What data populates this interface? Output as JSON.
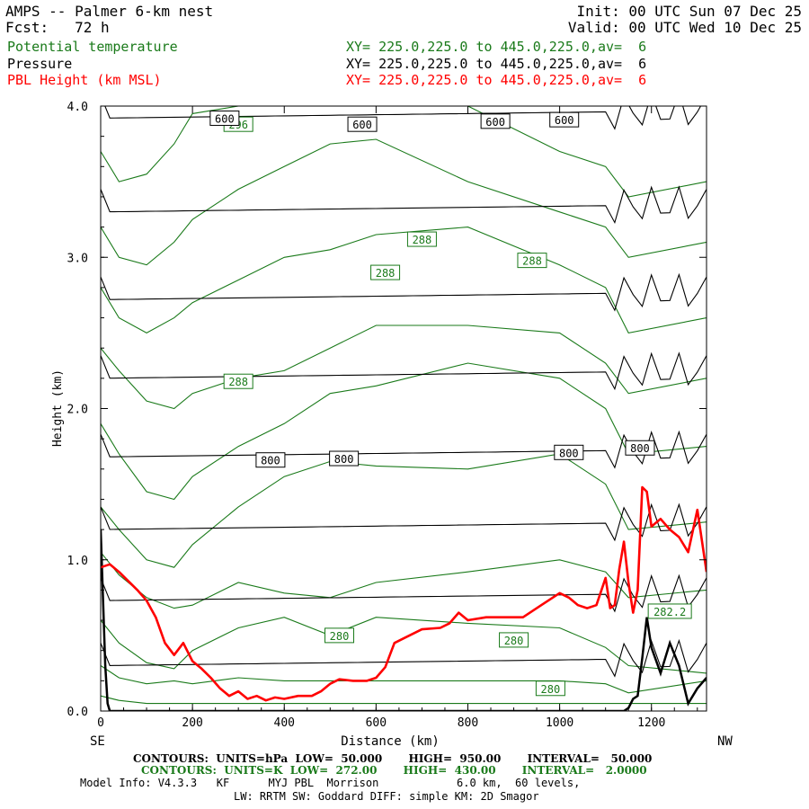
{
  "header": {
    "title": "AMPS -- Palmer 6-km nest",
    "forecast": "Fcst:   72 h",
    "init": "Init: 00 UTC Sun 07 Dec 25",
    "valid": "Valid: 00 UTC Wed 10 Dec 25",
    "fields": [
      {
        "name": "Potential temperature",
        "xy": "XY= 225.0,225.0 to 445.0,225.0,av=  6"
      },
      {
        "name": "Pressure",
        "xy": "XY= 225.0,225.0 to 445.0,225.0,av=  6"
      },
      {
        "name": "PBL Height (km MSL)",
        "xy": "XY= 225.0,225.0 to 445.0,225.0,av=  6"
      }
    ]
  },
  "footer": {
    "contours_pressure": "CONTOURS:  UNITS=hPa  LOW=  50.000       HIGH=  950.00       INTERVAL=   50.000",
    "contours_theta": "CONTOURS:  UNITS=K  LOW=  272.00       HIGH=  430.00       INTERVAL=   2.0000",
    "model_info": "Model Info: V4.3.3   KF      MYJ PBL  Morrison            6.0 km,  60 levels,",
    "physics": "LW: RRTM SW: Goddard DIFF: simple KM: 2D Smagor"
  },
  "colors": {
    "pressure": "#000000",
    "theta": "#1a7a1a",
    "pbl": "#ff0000",
    "terrain": "#000000"
  },
  "chart_data": {
    "type": "line",
    "title": "AMPS -- Palmer 6-km nest",
    "xlabel": "Distance (km)",
    "ylabel": "Height (km)",
    "xlim": [
      0,
      1320
    ],
    "ylim": [
      0,
      4.0
    ],
    "x_ticks": [
      "0",
      "200",
      "400",
      "600",
      "800",
      "1000",
      "1200"
    ],
    "y_ticks": [
      "0.0",
      "1.0",
      "2.0",
      "3.0",
      "4.0"
    ],
    "x_end_labels": {
      "left": "SE",
      "right": "NW"
    },
    "series": [
      {
        "name": "PBL Height (km MSL)",
        "x": [
          0,
          20,
          40,
          60,
          80,
          100,
          120,
          140,
          160,
          180,
          200,
          220,
          240,
          260,
          280,
          300,
          320,
          340,
          360,
          380,
          400,
          430,
          460,
          480,
          500,
          520,
          550,
          580,
          600,
          620,
          640,
          660,
          700,
          740,
          760,
          780,
          800,
          840,
          880,
          920,
          960,
          1000,
          1020,
          1040,
          1060,
          1080,
          1100,
          1110,
          1120,
          1130,
          1140,
          1150,
          1160,
          1170,
          1180,
          1190,
          1200,
          1220,
          1240,
          1260,
          1280,
          1300,
          1320
        ],
        "y": [
          0.95,
          0.97,
          0.92,
          0.86,
          0.8,
          0.73,
          0.62,
          0.45,
          0.37,
          0.45,
          0.33,
          0.28,
          0.22,
          0.15,
          0.1,
          0.13,
          0.08,
          0.1,
          0.07,
          0.09,
          0.08,
          0.1,
          0.1,
          0.13,
          0.18,
          0.21,
          0.2,
          0.2,
          0.22,
          0.29,
          0.45,
          0.48,
          0.54,
          0.55,
          0.58,
          0.65,
          0.6,
          0.62,
          0.62,
          0.62,
          0.7,
          0.78,
          0.75,
          0.7,
          0.68,
          0.7,
          0.88,
          0.68,
          0.7,
          0.94,
          1.12,
          0.85,
          0.65,
          0.8,
          1.48,
          1.45,
          1.22,
          1.27,
          1.2,
          1.15,
          1.05,
          1.33,
          0.92
        ]
      },
      {
        "name": "Terrain height",
        "x": [
          0,
          10,
          15,
          20,
          30,
          600,
          1140,
          1150,
          1160,
          1170,
          1180,
          1190,
          1200,
          1220,
          1240,
          1260,
          1280,
          1300,
          1320
        ],
        "y": [
          1.2,
          0.3,
          0.05,
          0.0,
          0.0,
          0.0,
          0.0,
          0.02,
          0.08,
          0.1,
          0.35,
          0.62,
          0.42,
          0.25,
          0.45,
          0.3,
          0.05,
          0.15,
          0.22
        ]
      }
    ],
    "pressure_contours_hPa": [
      {
        "level": 950,
        "y": 0.3
      },
      {
        "level": 900,
        "y": 0.73
      },
      {
        "level": 850,
        "y": 1.2
      },
      {
        "level": 800,
        "y": 1.68
      },
      {
        "level": 750,
        "y": 2.2
      },
      {
        "level": 700,
        "y": 2.72
      },
      {
        "level": 650,
        "y": 3.3
      },
      {
        "level": 600,
        "y": 3.92
      }
    ],
    "pressure_labels": [
      {
        "text": "600",
        "x": 270,
        "y": 3.92
      },
      {
        "text": "600",
        "x": 570,
        "y": 3.88
      },
      {
        "text": "600",
        "x": 860,
        "y": 3.9
      },
      {
        "text": "600",
        "x": 1010,
        "y": 3.91
      },
      {
        "text": "800",
        "x": 370,
        "y": 1.66
      },
      {
        "text": "800",
        "x": 530,
        "y": 1.67
      },
      {
        "text": "800",
        "x": 1020,
        "y": 1.71
      },
      {
        "text": "800",
        "x": 1175,
        "y": 1.74
      }
    ],
    "theta_contours_K": [
      {
        "x": [
          0,
          40,
          100,
          160,
          200,
          300,
          400,
          500,
          600,
          800,
          1000,
          1100,
          1150,
          1320
        ],
        "y": [
          0.1,
          0.07,
          0.05,
          0.05,
          0.05,
          0.05,
          0.05,
          0.05,
          0.05,
          0.05,
          0.05,
          0.05,
          0.05,
          0.05
        ]
      },
      {
        "x": [
          0,
          40,
          100,
          160,
          200,
          300,
          400,
          500,
          600,
          800,
          1000,
          1100,
          1150,
          1320
        ],
        "y": [
          0.3,
          0.22,
          0.18,
          0.2,
          0.18,
          0.22,
          0.2,
          0.2,
          0.2,
          0.2,
          0.2,
          0.18,
          0.12,
          0.2
        ]
      },
      {
        "x": [
          0,
          40,
          100,
          160,
          200,
          300,
          400,
          500,
          600,
          800,
          1000,
          1100,
          1150,
          1320
        ],
        "y": [
          0.6,
          0.45,
          0.32,
          0.28,
          0.4,
          0.55,
          0.62,
          0.5,
          0.62,
          0.58,
          0.55,
          0.42,
          0.3,
          0.25
        ]
      },
      {
        "x": [
          0,
          40,
          100,
          160,
          200,
          300,
          400,
          500,
          600,
          800,
          1000,
          1100,
          1150,
          1320
        ],
        "y": [
          1.05,
          0.9,
          0.75,
          0.68,
          0.7,
          0.85,
          0.78,
          0.75,
          0.85,
          0.92,
          1.0,
          0.92,
          0.75,
          0.8
        ]
      },
      {
        "x": [
          0,
          40,
          100,
          160,
          200,
          300,
          400,
          500,
          600,
          800,
          1000,
          1100,
          1150,
          1320
        ],
        "y": [
          1.35,
          1.2,
          1.0,
          0.95,
          1.1,
          1.35,
          1.55,
          1.65,
          1.62,
          1.6,
          1.7,
          1.5,
          1.2,
          1.25
        ]
      },
      {
        "x": [
          0,
          40,
          100,
          160,
          200,
          300,
          400,
          500,
          600,
          800,
          1000,
          1100,
          1150,
          1320
        ],
        "y": [
          1.9,
          1.7,
          1.45,
          1.4,
          1.55,
          1.75,
          1.9,
          2.1,
          2.15,
          2.3,
          2.2,
          2.0,
          1.7,
          1.75
        ]
      },
      {
        "x": [
          0,
          40,
          100,
          160,
          200,
          300,
          400,
          500,
          600,
          800,
          1000,
          1100,
          1150,
          1320
        ],
        "y": [
          2.4,
          2.25,
          2.05,
          2.0,
          2.1,
          2.2,
          2.25,
          2.4,
          2.55,
          2.55,
          2.5,
          2.3,
          2.1,
          2.2
        ]
      },
      {
        "x": [
          0,
          40,
          100,
          160,
          200,
          300,
          400,
          500,
          600,
          800,
          1000,
          1100,
          1150,
          1320
        ],
        "y": [
          2.8,
          2.6,
          2.5,
          2.6,
          2.7,
          2.85,
          3.0,
          3.05,
          3.15,
          3.2,
          2.95,
          2.8,
          2.5,
          2.6
        ]
      },
      {
        "x": [
          0,
          40,
          100,
          160,
          200,
          300,
          400,
          500,
          600,
          800,
          1000,
          1100,
          1150,
          1320
        ],
        "y": [
          3.2,
          3.0,
          2.95,
          3.1,
          3.25,
          3.45,
          3.6,
          3.75,
          3.78,
          3.5,
          3.3,
          3.2,
          3.0,
          3.1
        ]
      },
      {
        "x": [
          0,
          40,
          100,
          160,
          200,
          300,
          400,
          500,
          600,
          800,
          1000,
          1100,
          1150,
          1320
        ],
        "y": [
          3.7,
          3.5,
          3.55,
          3.75,
          3.95,
          4.0,
          4.0,
          4.0,
          4.0,
          4.0,
          3.7,
          3.6,
          3.4,
          3.5
        ]
      }
    ],
    "theta_labels": [
      {
        "text": "296",
        "x": 300,
        "y": 3.88
      },
      {
        "text": "288",
        "x": 700,
        "y": 3.12
      },
      {
        "text": "288",
        "x": 620,
        "y": 2.9
      },
      {
        "text": "288",
        "x": 940,
        "y": 2.98
      },
      {
        "text": "288",
        "x": 300,
        "y": 2.18
      },
      {
        "text": "280",
        "x": 520,
        "y": 0.5
      },
      {
        "text": "280",
        "x": 900,
        "y": 0.47
      },
      {
        "text": "280",
        "x": 980,
        "y": 0.15
      },
      {
        "text": "282.2",
        "x": 1240,
        "y": 0.66
      }
    ]
  }
}
